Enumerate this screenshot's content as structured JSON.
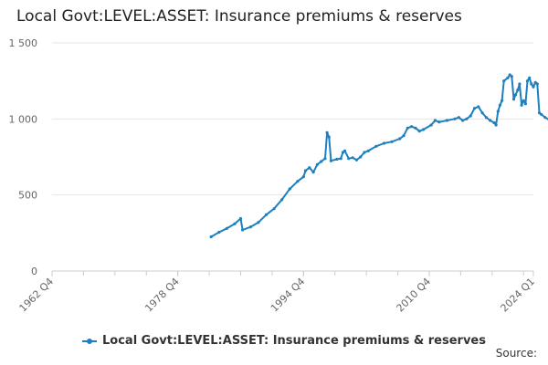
{
  "chart_data": {
    "type": "line",
    "title": "Local Govt:LEVEL:ASSET: Insurance premiums & reserves",
    "xlabel": "",
    "ylabel": "",
    "xlim": [
      1962.75,
      2024.0
    ],
    "ylim": [
      0,
      1500
    ],
    "x_tick_labels": [
      {
        "x": 1962.75,
        "label": "1962 Q4"
      },
      {
        "x": 1978.75,
        "label": "1978 Q4"
      },
      {
        "x": 1994.75,
        "label": "1994 Q4"
      },
      {
        "x": 2010.75,
        "label": "2010 Q4"
      },
      {
        "x": 2024.0,
        "label": "2024 Q1"
      }
    ],
    "y_ticks": [
      {
        "value": 0,
        "label": "0"
      },
      {
        "value": 500,
        "label": "500"
      },
      {
        "value": 1000,
        "label": "1 000"
      },
      {
        "value": 1500,
        "label": "1 500"
      }
    ],
    "grid": true,
    "legend_position": "bottom",
    "series": [
      {
        "name": "Local Govt:LEVEL:ASSET: Insurance premiums & reserves",
        "color": "#1f7fbf",
        "points": [
          [
            1983.0,
            225
          ],
          [
            1984.0,
            255
          ],
          [
            1985.0,
            280
          ],
          [
            1986.0,
            310
          ],
          [
            1986.75,
            345
          ],
          [
            1987.0,
            270
          ],
          [
            1988.0,
            290
          ],
          [
            1989.0,
            320
          ],
          [
            1990.0,
            370
          ],
          [
            1991.0,
            410
          ],
          [
            1992.0,
            470
          ],
          [
            1993.0,
            540
          ],
          [
            1994.0,
            590
          ],
          [
            1994.75,
            620
          ],
          [
            1995.0,
            660
          ],
          [
            1995.5,
            680
          ],
          [
            1996.0,
            650
          ],
          [
            1996.5,
            700
          ],
          [
            1997.0,
            720
          ],
          [
            1997.5,
            740
          ],
          [
            1997.75,
            910
          ],
          [
            1998.0,
            880
          ],
          [
            1998.25,
            725
          ],
          [
            1999.0,
            735
          ],
          [
            1999.5,
            740
          ],
          [
            1999.75,
            780
          ],
          [
            2000.0,
            790
          ],
          [
            2000.5,
            740
          ],
          [
            2001.0,
            745
          ],
          [
            2001.5,
            730
          ],
          [
            2002.0,
            750
          ],
          [
            2002.5,
            780
          ],
          [
            2003.0,
            790
          ],
          [
            2004.0,
            820
          ],
          [
            2005.0,
            840
          ],
          [
            2006.0,
            850
          ],
          [
            2007.0,
            870
          ],
          [
            2007.5,
            890
          ],
          [
            2008.0,
            940
          ],
          [
            2008.5,
            950
          ],
          [
            2009.0,
            940
          ],
          [
            2009.5,
            920
          ],
          [
            2010.0,
            930
          ],
          [
            2011.0,
            960
          ],
          [
            2011.5,
            990
          ],
          [
            2012.0,
            980
          ],
          [
            2013.0,
            990
          ],
          [
            2014.0,
            1000
          ],
          [
            2014.5,
            1010
          ],
          [
            2015.0,
            990
          ],
          [
            2015.5,
            1000
          ],
          [
            2016.0,
            1020
          ],
          [
            2016.5,
            1070
          ],
          [
            2017.0,
            1080
          ],
          [
            2017.5,
            1040
          ],
          [
            2018.0,
            1010
          ],
          [
            2018.5,
            990
          ],
          [
            2019.0,
            975
          ],
          [
            2019.25,
            960
          ],
          [
            2019.5,
            1050
          ],
          [
            2019.75,
            1090
          ],
          [
            2020.0,
            1120
          ],
          [
            2020.25,
            1250
          ],
          [
            2020.75,
            1270
          ],
          [
            2021.0,
            1290
          ],
          [
            2021.25,
            1280
          ],
          [
            2021.5,
            1130
          ],
          [
            2021.75,
            1160
          ],
          [
            2022.0,
            1190
          ],
          [
            2022.25,
            1230
          ],
          [
            2022.5,
            1090
          ],
          [
            2022.75,
            1120
          ],
          [
            2023.0,
            1100
          ],
          [
            2023.25,
            1250
          ],
          [
            2023.5,
            1270
          ],
          [
            2023.75,
            1230
          ],
          [
            2024.0,
            1210
          ],
          [
            2024.25,
            1240
          ],
          [
            2024.5,
            1230
          ],
          [
            2024.75,
            1040
          ],
          [
            2025.0,
            1030
          ],
          [
            2025.5,
            1010
          ],
          [
            2026.0,
            995
          ],
          [
            2026.5,
            990
          ],
          [
            2027.0,
            990
          ]
        ]
      }
    ]
  },
  "legend": {
    "label": "Local Govt:LEVEL:ASSET: Insurance premiums & reserves"
  },
  "source": {
    "label": "Source:"
  }
}
